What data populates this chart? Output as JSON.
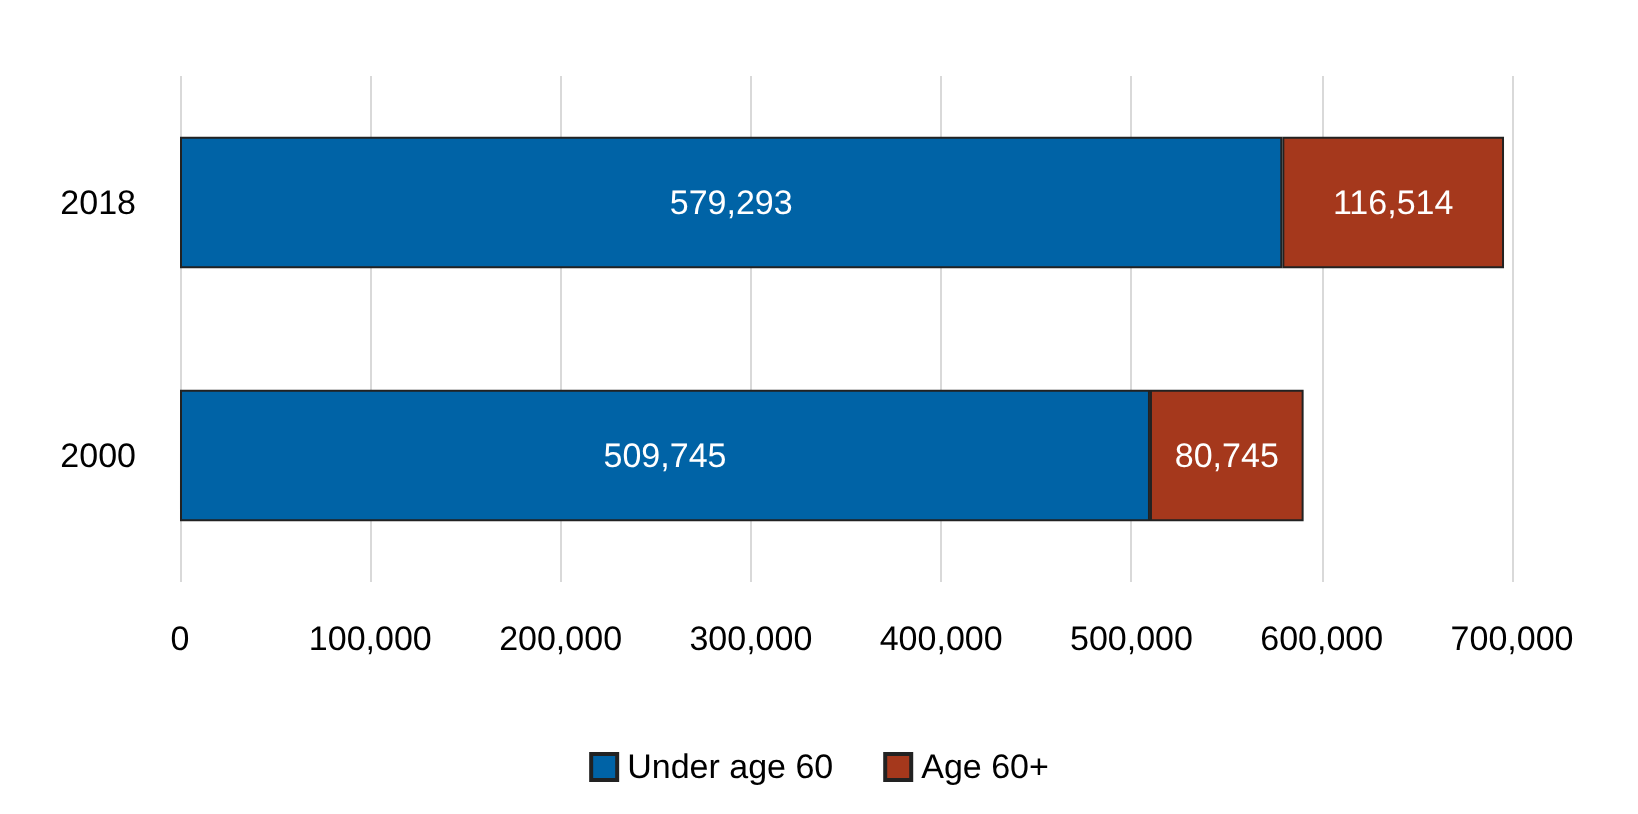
{
  "chart_data": {
    "type": "bar",
    "orientation": "horizontal",
    "stacked": true,
    "categories": [
      "2018",
      "2000"
    ],
    "series": [
      {
        "name": "Under age 60",
        "color": "#0063a6",
        "values": [
          579293,
          509745
        ],
        "value_labels": [
          "579,293",
          "509,745"
        ]
      },
      {
        "name": "Age 60+",
        "color": "#a5381c",
        "values": [
          116514,
          80745
        ],
        "value_labels": [
          "116,514",
          "80,745"
        ]
      }
    ],
    "xlim": [
      0,
      700000
    ],
    "xticks": [
      {
        "value": 0,
        "label": "0"
      },
      {
        "value": 100000,
        "label": "100,000"
      },
      {
        "value": 200000,
        "label": "200,000"
      },
      {
        "value": 300000,
        "label": "300,000"
      },
      {
        "value": 400000,
        "label": "400,000"
      },
      {
        "value": 500000,
        "label": "500,000"
      },
      {
        "value": 600000,
        "label": "600,000"
      },
      {
        "value": 700000,
        "label": "700,000"
      }
    ],
    "grid": "x",
    "legend": "bottom"
  }
}
